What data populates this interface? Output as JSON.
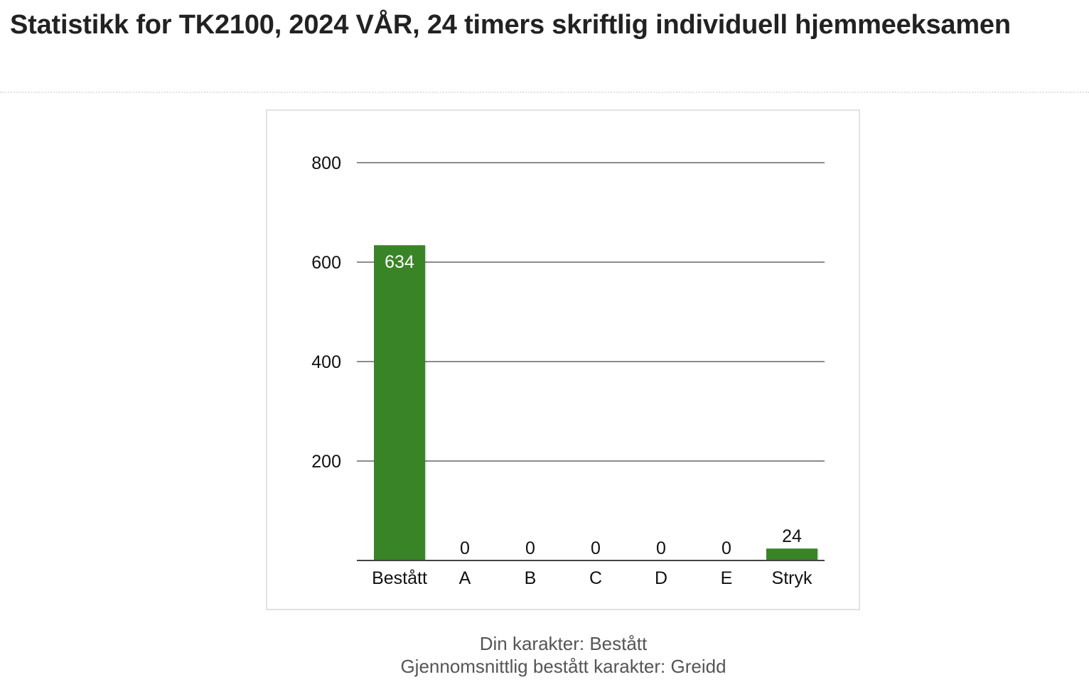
{
  "page": {
    "title": "Statistikk for TK2100, 2024 VÅR, 24 timers skriftlig individuell hjemmeeksamen"
  },
  "footer": {
    "your_grade": "Din karakter: Bestått",
    "average_grade": "Gjennomsnittlig bestått karakter: Greidd"
  },
  "colors": {
    "bar": "#3a8428",
    "gridline": "#666666",
    "frame": "#e2e2e2",
    "title_text": "#222222",
    "footer_text": "#555555"
  },
  "chart_data": {
    "type": "bar",
    "title": "",
    "xlabel": "",
    "ylabel": "",
    "categories": [
      "Bestått",
      "A",
      "B",
      "C",
      "D",
      "E",
      "Stryk"
    ],
    "values": [
      634,
      0,
      0,
      0,
      0,
      0,
      24
    ],
    "data_labels": [
      "634",
      "0",
      "0",
      "0",
      "0",
      "0",
      "24"
    ],
    "ylim": [
      0,
      800
    ],
    "yticks": [
      0,
      200,
      400,
      600,
      800
    ],
    "ytick_labels": [
      "",
      "200",
      "400",
      "600",
      "800"
    ],
    "grid": true,
    "legend": "none"
  }
}
